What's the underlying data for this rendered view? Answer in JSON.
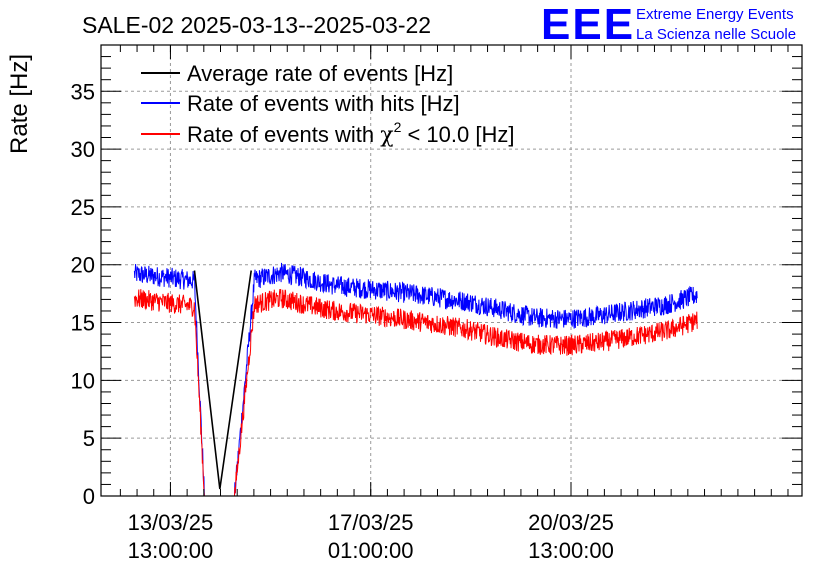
{
  "header": {
    "title": "SALE-02 2025-03-13--2025-03-22",
    "logo_text": "EEE",
    "org_line1": "Extreme Energy Events",
    "org_line2": "La Scienza nelle Scuole"
  },
  "colors": {
    "average": "#000000",
    "hits": "#0000ff",
    "chi2": "#ff0000",
    "grid": "#9a9a9a",
    "logo": "#0000ff"
  },
  "chart_data": {
    "type": "line",
    "title": "SALE-02 2025-03-13--2025-03-22",
    "xlabel": "",
    "ylabel": "Rate [Hz]",
    "ylim": [
      0,
      39
    ],
    "xlim_days": [
      0,
      10.5
    ],
    "grid": true,
    "legend_position": "top-left",
    "y_ticks": [
      "0",
      "5",
      "10",
      "15",
      "20",
      "25",
      "30",
      "35"
    ],
    "x_ticks": [
      {
        "day": 1.04,
        "date": "13/03/25",
        "time": "13:00:00"
      },
      {
        "day": 4.04,
        "date": "17/03/25",
        "time": "01:00:00"
      },
      {
        "day": 7.04,
        "date": "20/03/25",
        "time": "13:00:00"
      }
    ],
    "legend": [
      {
        "key": "average",
        "label": "Average rate of events [Hz]"
      },
      {
        "key": "hits",
        "label": "Rate of events with hits [Hz]"
      },
      {
        "key": "chi2",
        "label_prefix": "Rate of events with ",
        "chi": "χ",
        "sup": "2",
        "label_suffix": " < 10.0 [Hz]"
      }
    ],
    "series": [
      {
        "name": "Rate of events with hits [Hz]",
        "key": "hits",
        "noise": 0.55,
        "x": [
          0.5,
          1.0,
          1.4,
          1.55,
          1.75,
          2.0,
          2.3,
          2.7,
          3.1,
          3.5,
          4.0,
          4.5,
          5.0,
          5.5,
          6.0,
          6.5,
          7.0,
          7.5,
          8.0,
          8.5,
          8.93
        ],
        "y": [
          19.2,
          18.9,
          18.6,
          0,
          0,
          0,
          18.7,
          19.3,
          18.8,
          18.2,
          17.9,
          17.6,
          17.2,
          16.8,
          16.1,
          15.4,
          15.3,
          15.6,
          16.1,
          16.6,
          17.4
        ]
      },
      {
        "name": "Rate of events with χ2 < 10.0 [Hz]",
        "key": "chi2",
        "noise": 0.55,
        "x": [
          0.5,
          1.0,
          1.4,
          1.55,
          1.75,
          2.0,
          2.3,
          2.7,
          3.1,
          3.5,
          4.0,
          4.5,
          5.0,
          5.5,
          6.0,
          6.5,
          7.0,
          7.5,
          8.0,
          8.5,
          8.93
        ],
        "y": [
          17.1,
          16.7,
          16.4,
          0,
          0,
          0,
          16.6,
          17.1,
          16.5,
          16.0,
          15.7,
          15.3,
          14.9,
          14.4,
          13.6,
          13.1,
          13.0,
          13.3,
          13.8,
          14.3,
          15.2
        ]
      },
      {
        "name": "Average rate of events [Hz]",
        "key": "average",
        "x": [
          1.4,
          1.78,
          2.25
        ],
        "y": [
          19.5,
          0.6,
          19.5
        ]
      }
    ]
  }
}
